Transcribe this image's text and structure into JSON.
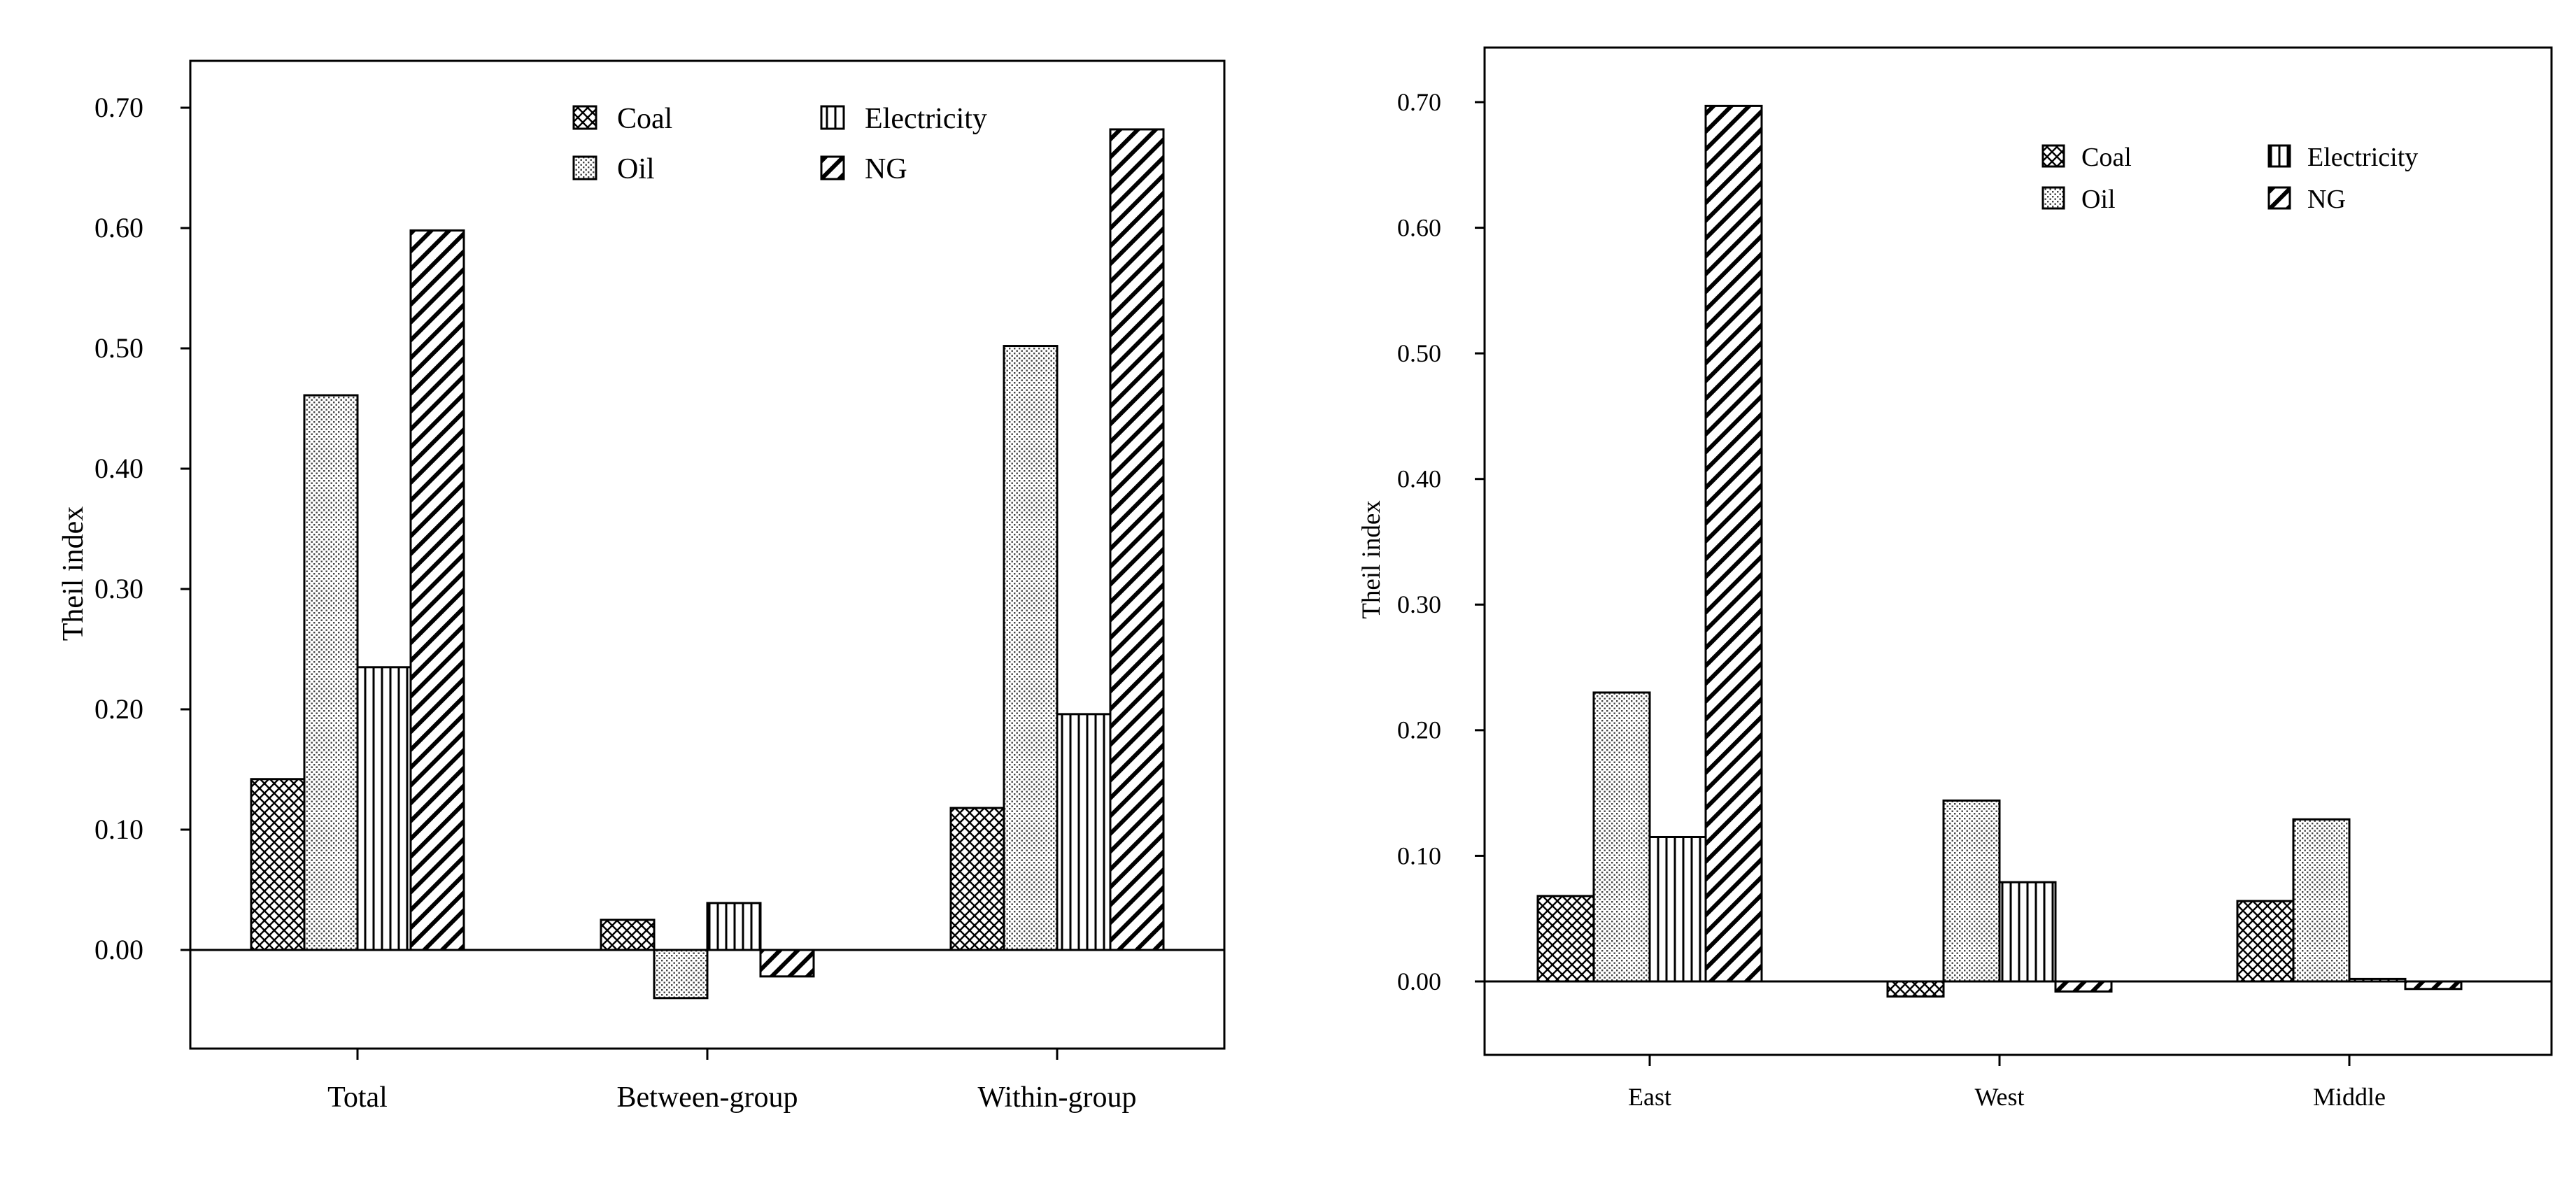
{
  "colors": {
    "ink": "#000000",
    "paper": "#ffffff"
  },
  "chart_data": [
    {
      "type": "bar",
      "title": "",
      "xlabel": "",
      "ylabel": "Theil index",
      "categories": [
        "Total",
        "Between-group",
        "Within-group"
      ],
      "series": [
        {
          "name": "Coal",
          "pattern": "crosshatch",
          "values": [
            0.142,
            0.025,
            0.118
          ]
        },
        {
          "name": "Oil",
          "pattern": "dots",
          "values": [
            0.461,
            -0.04,
            0.502
          ]
        },
        {
          "name": "Electricity",
          "pattern": "vertical",
          "values": [
            0.235,
            0.039,
            0.196
          ]
        },
        {
          "name": "NG",
          "pattern": "diagonal",
          "values": [
            0.598,
            -0.022,
            0.682
          ]
        }
      ],
      "ylim": [
        -0.08,
        0.74
      ],
      "yticks": [
        0.0,
        0.1,
        0.2,
        0.3,
        0.4,
        0.5,
        0.6,
        0.7
      ],
      "ytick_labels": [
        "0.00",
        "0.10",
        "0.20",
        "0.30",
        "0.40",
        "0.50",
        "0.60",
        "0.70"
      ],
      "legend_position": "top-right",
      "grid": false
    },
    {
      "type": "bar",
      "title": "",
      "xlabel": "",
      "ylabel": "Theil index",
      "categories": [
        "East",
        "West",
        "Middle"
      ],
      "series": [
        {
          "name": "Coal",
          "pattern": "crosshatch",
          "values": [
            0.068,
            -0.012,
            0.064
          ]
        },
        {
          "name": "Oil",
          "pattern": "dots",
          "values": [
            0.23,
            0.144,
            0.129
          ]
        },
        {
          "name": "Electricity",
          "pattern": "vertical",
          "values": [
            0.115,
            0.079,
            0.002
          ]
        },
        {
          "name": "NG",
          "pattern": "diagonal",
          "values": [
            0.697,
            -0.008,
            -0.006
          ]
        }
      ],
      "ylim": [
        -0.05,
        0.74
      ],
      "yticks": [
        0.0,
        0.1,
        0.2,
        0.3,
        0.4,
        0.5,
        0.6,
        0.7
      ],
      "ytick_labels": [
        "0.00",
        "0.10",
        "0.20",
        "0.30",
        "0.40",
        "0.50",
        "0.60",
        "0.70"
      ],
      "legend_position": "top-right",
      "grid": false
    }
  ]
}
